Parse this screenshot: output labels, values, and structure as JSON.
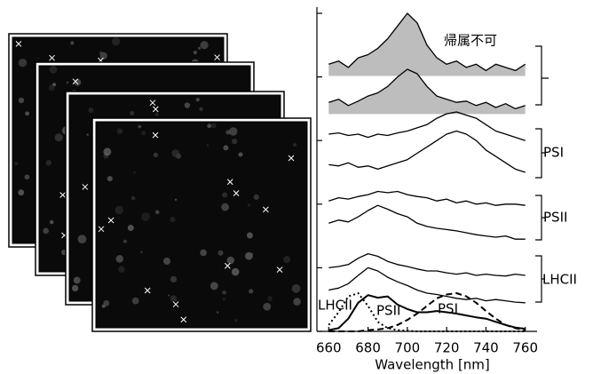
{
  "chart_data": {
    "type": "line",
    "xlabel": "Wavelength [nm]",
    "xlim": [
      654,
      766
    ],
    "xticks": [
      660,
      680,
      700,
      720,
      740,
      760
    ],
    "ylim": [
      0,
      5
    ],
    "yticks": [
      0,
      1,
      2,
      3,
      4,
      5
    ],
    "x": [
      660,
      665,
      670,
      675,
      680,
      685,
      690,
      695,
      700,
      705,
      710,
      715,
      720,
      725,
      730,
      735,
      740,
      745,
      750,
      755,
      760
    ],
    "series": [
      {
        "color": "#000",
        "fill": "#bdbdbd",
        "values": [
          4.2,
          4.25,
          4.15,
          4.3,
          4.35,
          4.45,
          4.6,
          4.8,
          5.0,
          4.85,
          4.5,
          4.3,
          4.2,
          4.25,
          4.15,
          4.2,
          4.1,
          4.2,
          4.15,
          4.1,
          4.2
        ]
      },
      {
        "color": "#000",
        "fill": "#bdbdbd",
        "values": [
          3.6,
          3.65,
          3.55,
          3.62,
          3.7,
          3.75,
          3.85,
          4.0,
          4.12,
          4.05,
          3.85,
          3.7,
          3.65,
          3.6,
          3.62,
          3.55,
          3.6,
          3.52,
          3.58,
          3.5,
          3.55
        ]
      },
      {
        "color": "#000",
        "values": [
          3.1,
          3.12,
          3.08,
          3.1,
          3.05,
          3.1,
          3.08,
          3.12,
          3.15,
          3.2,
          3.25,
          3.35,
          3.42,
          3.45,
          3.4,
          3.35,
          3.25,
          3.15,
          3.1,
          3.05,
          3.0
        ]
      },
      {
        "color": "#000",
        "values": [
          2.62,
          2.6,
          2.65,
          2.58,
          2.6,
          2.55,
          2.6,
          2.65,
          2.7,
          2.8,
          2.9,
          3.0,
          3.1,
          3.15,
          3.1,
          3.0,
          2.85,
          2.75,
          2.65,
          2.55,
          2.5
        ]
      },
      {
        "color": "#000",
        "values": [
          2.05,
          2.1,
          2.08,
          2.12,
          2.15,
          2.2,
          2.18,
          2.2,
          2.15,
          2.12,
          2.1,
          2.05,
          2.08,
          2.02,
          2.05,
          2.0,
          2.02,
          1.98,
          2.0,
          2.0,
          1.98
        ]
      },
      {
        "color": "#000",
        "values": [
          1.7,
          1.75,
          1.72,
          1.8,
          1.9,
          1.98,
          1.92,
          1.85,
          1.8,
          1.7,
          1.65,
          1.62,
          1.6,
          1.58,
          1.55,
          1.52,
          1.5,
          1.48,
          1.5,
          1.45,
          1.45
        ]
      },
      {
        "color": "#000",
        "values": [
          1.0,
          1.02,
          1.05,
          1.15,
          1.22,
          1.18,
          1.1,
          1.05,
          1.02,
          0.98,
          0.95,
          0.95,
          0.92,
          0.9,
          0.92,
          0.88,
          0.9,
          0.88,
          0.87,
          0.9,
          0.88
        ]
      },
      {
        "color": "#000",
        "values": [
          0.65,
          0.68,
          0.75,
          0.88,
          1.0,
          0.95,
          0.85,
          0.78,
          0.72,
          0.65,
          0.6,
          0.58,
          0.55,
          0.52,
          0.5,
          0.52,
          0.48,
          0.5,
          0.48,
          0.46,
          0.45
        ]
      },
      {
        "name": "LHCII",
        "color": "#000",
        "dash": "dotted",
        "values": [
          0.1,
          0.3,
          0.55,
          0.6,
          0.4,
          0.15,
          0.05,
          0.02,
          0.01,
          0,
          0,
          0,
          0,
          0,
          0,
          0,
          0,
          0,
          0,
          0,
          0
        ]
      },
      {
        "name": "PSII",
        "color": "#000",
        "dash": "solid",
        "values": [
          0.02,
          0.05,
          0.2,
          0.45,
          0.57,
          0.53,
          0.55,
          0.42,
          0.35,
          0.3,
          0.3,
          0.32,
          0.3,
          0.28,
          0.25,
          0.22,
          0.2,
          0.15,
          0.1,
          0.06,
          0.04
        ]
      },
      {
        "name": "PSI",
        "color": "#000",
        "dash": "dashed",
        "values": [
          0,
          0,
          0,
          0,
          0.02,
          0.03,
          0.05,
          0.1,
          0.18,
          0.28,
          0.4,
          0.52,
          0.58,
          0.6,
          0.55,
          0.45,
          0.32,
          0.2,
          0.1,
          0.05,
          0.02
        ]
      }
    ],
    "annotations": [
      "帰属不可",
      "PSI",
      "PSII",
      "LHCII"
    ]
  }
}
